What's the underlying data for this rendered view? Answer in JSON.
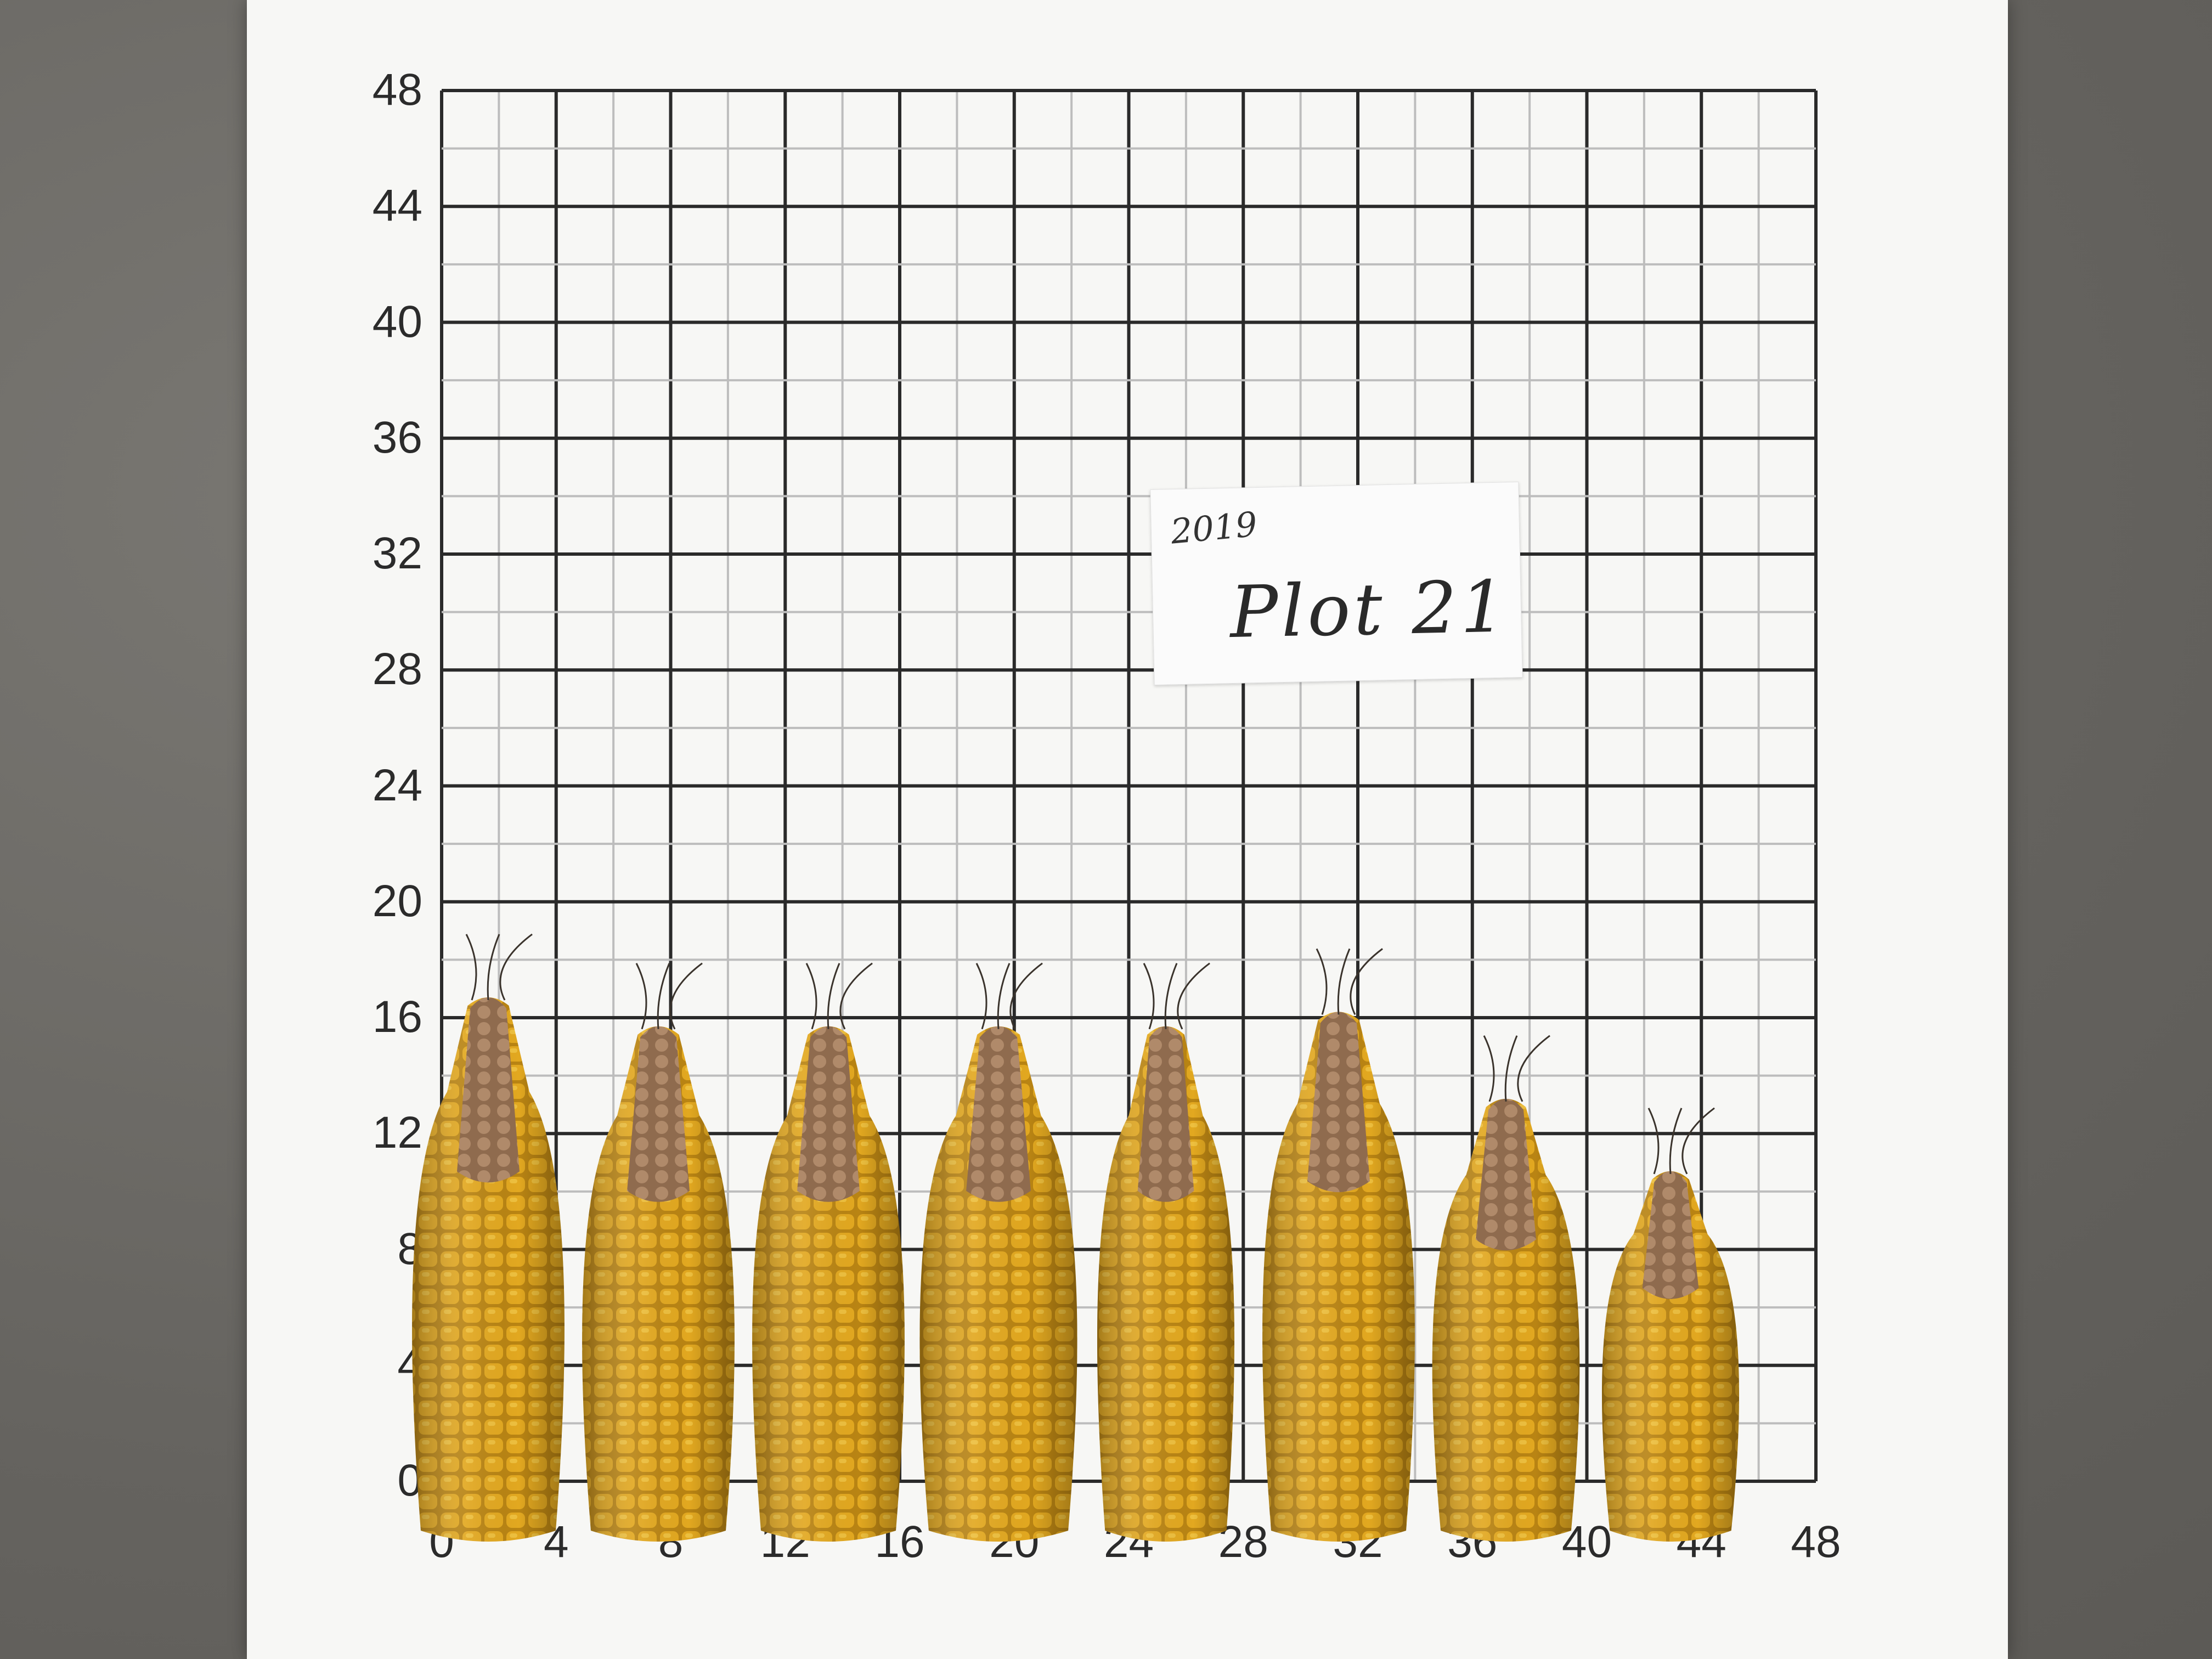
{
  "board": {
    "y_ticks": [
      "48",
      "44",
      "40",
      "36",
      "32",
      "28",
      "24",
      "20",
      "16",
      "12",
      "8",
      "4",
      "0"
    ],
    "x_ticks": [
      "0",
      "4",
      "8",
      "12",
      "16",
      "20",
      "24",
      "28",
      "32",
      "36",
      "40",
      "44",
      "48"
    ]
  },
  "label": {
    "year": "2019",
    "text": "Plot 21"
  },
  "ears": [
    {
      "name": "corn-ear-1",
      "length": 18.5
    },
    {
      "name": "corn-ear-2",
      "length": 17.5
    },
    {
      "name": "corn-ear-3",
      "length": 17.5
    },
    {
      "name": "corn-ear-4",
      "length": 17.5
    },
    {
      "name": "corn-ear-5",
      "length": 17.5
    },
    {
      "name": "corn-ear-6",
      "length": 18.0
    },
    {
      "name": "corn-ear-7",
      "length": 15.0
    },
    {
      "name": "corn-ear-8",
      "length": 12.5
    }
  ],
  "colors": {
    "kernel": "#e2a820",
    "kernel_dark": "#b98413",
    "tip": "#b08a6a",
    "grid_major": "#2a2a2a",
    "grid_minor": "#bdbdbd",
    "board": "#f7f7f5"
  }
}
